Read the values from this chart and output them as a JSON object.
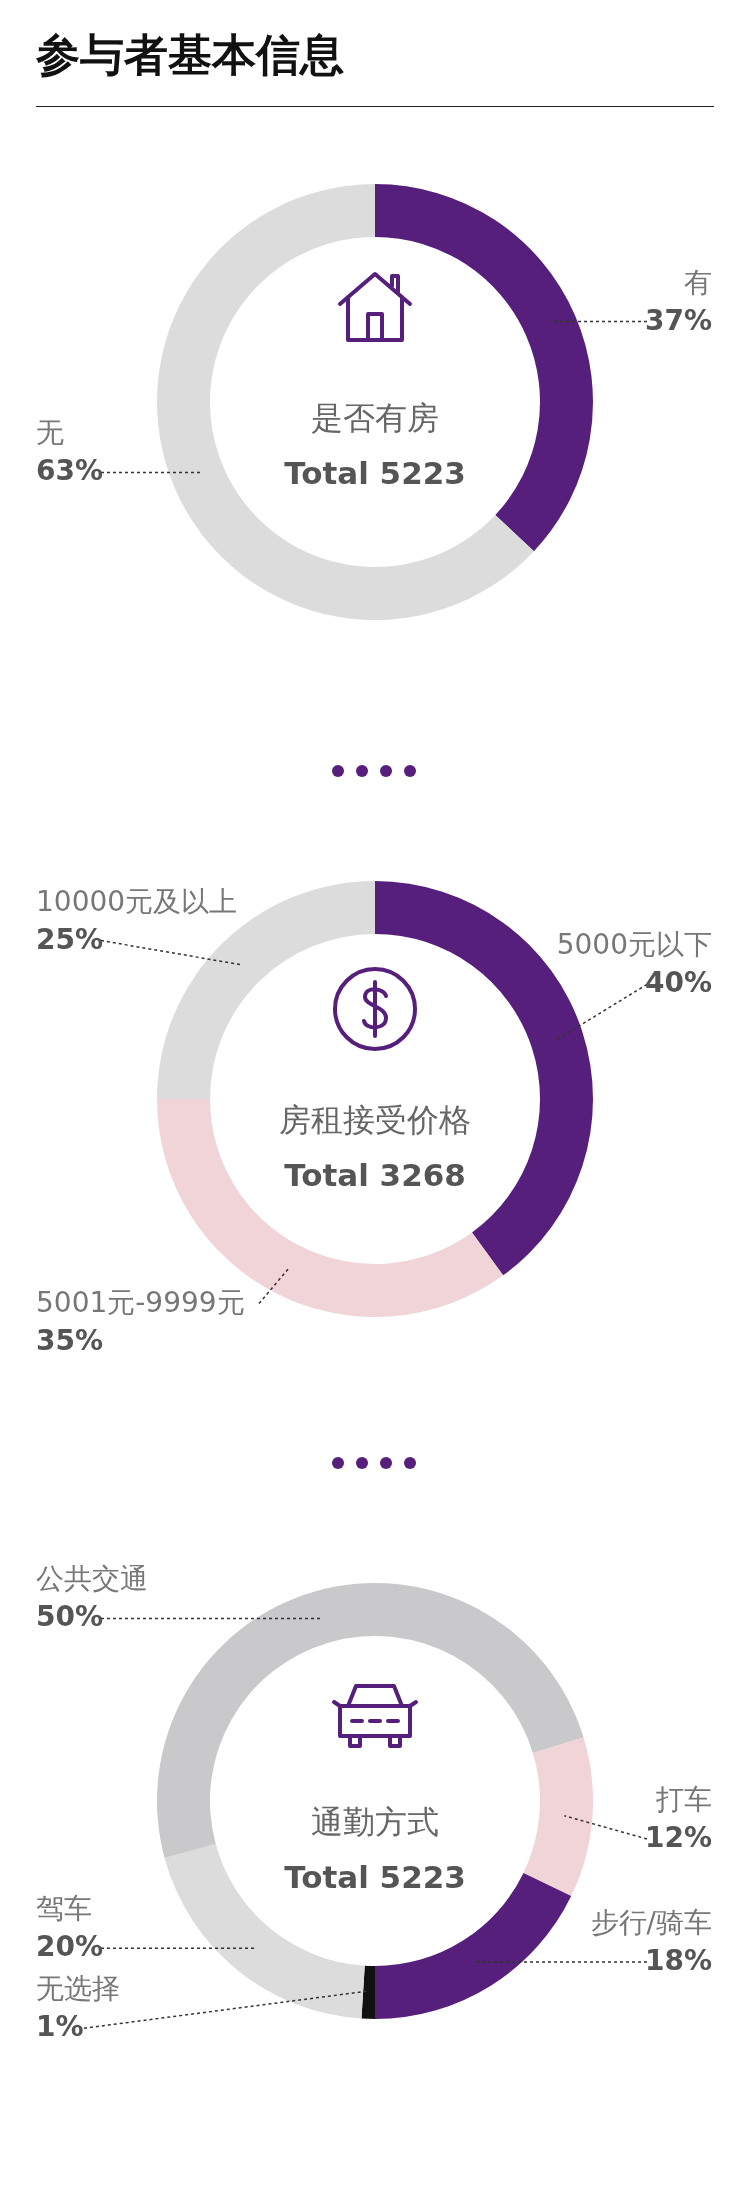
{
  "chart_data": [
    {
      "type": "donut",
      "title": "是否有房",
      "subtitle": "Total 5223",
      "annotations": [
        "参与者基本信息"
      ],
      "categories": [
        "有",
        "无"
      ],
      "values": [
        37,
        63
      ],
      "colors": [
        "#561f7b",
        "#dcdcdc"
      ],
      "value_labels": [
        "37%",
        "63%"
      ]
    },
    {
      "type": "donut",
      "title": "房租接受价格",
      "subtitle": "Total 3268",
      "categories": [
        "5000元以下",
        "5001元-9999元",
        "10000元及以上"
      ],
      "values": [
        40,
        35,
        25
      ],
      "colors": [
        "#561f7b",
        "#f0d4d7",
        "#dcdcdc"
      ],
      "value_labels": [
        "40%",
        "35%",
        "25%"
      ]
    },
    {
      "type": "donut",
      "title": "通勤方式",
      "subtitle": "Total 5223",
      "categories": [
        "无选择",
        "驾车",
        "公共交通",
        "打车",
        "步行/骑车"
      ],
      "values": [
        1,
        20,
        50,
        12,
        18
      ],
      "colors": [
        "#111111",
        "#dcdcdc",
        "#c9c8cb",
        "#f0d4d7",
        "#561f7b"
      ],
      "value_labels": [
        "1%",
        "20%",
        "50%",
        "12%",
        "18%"
      ]
    }
  ]
}
